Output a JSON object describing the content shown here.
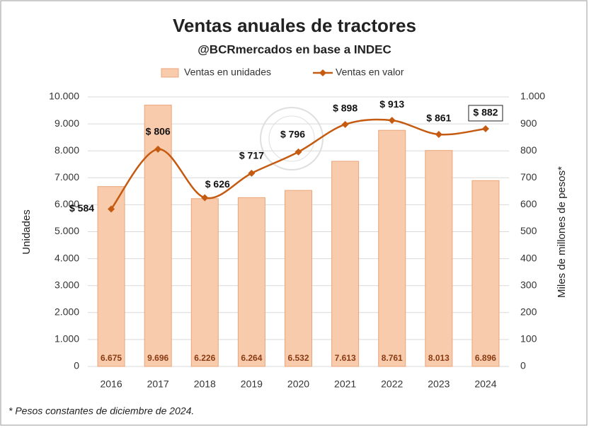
{
  "chart_data": {
    "type": "bar-line",
    "title": "Ventas anuales de tractores",
    "subtitle": "@BCRmercados en base a INDEC",
    "y_label": "Unidades",
    "y2_label": "Miles de millones de pesos*",
    "footnote": "* Pesos constantes de diciembre de 2024.",
    "categories": [
      "2016",
      "2017",
      "2018",
      "2019",
      "2020",
      "2021",
      "2022",
      "2023",
      "2024"
    ],
    "series": [
      {
        "name": "Ventas en unidades",
        "type": "bar",
        "color": "#f8cbad",
        "values": [
          6675,
          9696,
          6226,
          6264,
          6532,
          7613,
          8761,
          8013,
          6896
        ],
        "value_labels": [
          "6.675",
          "9.696",
          "6.226",
          "6.264",
          "6.532",
          "7.613",
          "8.761",
          "8.013",
          "6.896"
        ]
      },
      {
        "name": "Ventas en valor",
        "type": "line",
        "axis": "y2",
        "color": "#c55a11",
        "values": [
          584,
          806,
          626,
          717,
          796,
          898,
          913,
          861,
          882
        ],
        "value_labels": [
          "$ 584",
          "$ 806",
          "$ 626",
          "$ 717",
          "$ 796",
          "$ 898",
          "$ 913",
          "$ 861",
          "$ 882"
        ]
      }
    ],
    "ylim": [
      0,
      10000
    ],
    "yticks": [
      0,
      {
        "value": 1000,
        "label": "1.000"
      },
      {
        "value": 2000,
        "label": "2.000"
      },
      {
        "value": 3000,
        "label": "3.000"
      },
      {
        "value": 4000,
        "label": "4.000"
      },
      {
        "value": 5000,
        "label": "5.000"
      },
      {
        "value": 6000,
        "label": "6.000"
      },
      {
        "value": 7000,
        "label": "7.000"
      },
      {
        "value": 8000,
        "label": "8.000"
      },
      {
        "value": 9000,
        "label": "9.000"
      },
      {
        "value": 10000,
        "label": "10.000"
      }
    ],
    "y2lim": [
      0,
      1000
    ],
    "y2ticks": [
      0,
      100,
      200,
      300,
      400,
      500,
      600,
      700,
      800,
      900,
      {
        "value": 1000,
        "label": "1.000"
      }
    ],
    "grid": true,
    "legend": "top"
  }
}
